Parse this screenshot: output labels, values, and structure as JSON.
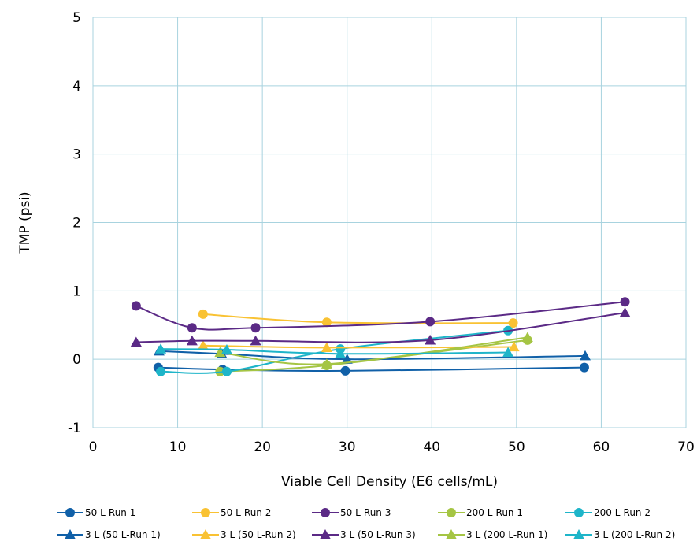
{
  "chart_data": {
    "type": "scatter",
    "title": "",
    "xlabel": "Viable Cell Density (E6 cells/mL)",
    "ylabel": "TMP (psi)",
    "xlim": [
      0,
      70
    ],
    "ylim": [
      -1,
      5
    ],
    "xticks": [
      0,
      10,
      20,
      30,
      40,
      50,
      60,
      70
    ],
    "yticks": [
      -1,
      0,
      1,
      2,
      3,
      4,
      5
    ],
    "grid": true,
    "legend_position": "bottom",
    "series": [
      {
        "name": "50 L-Run 1",
        "marker": "circle",
        "color": "#1060a8",
        "points": [
          [
            7.7,
            -0.12
          ],
          [
            15.3,
            -0.15
          ],
          [
            29.8,
            -0.17
          ],
          [
            58.0,
            -0.12
          ]
        ]
      },
      {
        "name": "50 L-Run 2",
        "marker": "circle",
        "color": "#f9c233",
        "points": [
          [
            13.0,
            0.66
          ],
          [
            27.6,
            0.54
          ],
          [
            49.6,
            0.53
          ]
        ]
      },
      {
        "name": "50 L-Run 3",
        "marker": "circle",
        "color": "#5b2a86",
        "points": [
          [
            5.1,
            0.78
          ],
          [
            11.7,
            0.46
          ],
          [
            19.2,
            0.46
          ],
          [
            39.8,
            0.55
          ],
          [
            62.8,
            0.84
          ]
        ]
      },
      {
        "name": "200 L-Run 1",
        "marker": "circle",
        "color": "#a5c544",
        "points": [
          [
            15.0,
            -0.18
          ],
          [
            27.6,
            -0.09
          ],
          [
            51.3,
            0.28
          ]
        ]
      },
      {
        "name": "200 L-Run 2",
        "marker": "circle",
        "color": "#1eb5c9",
        "points": [
          [
            8.0,
            -0.18
          ],
          [
            15.8,
            -0.18
          ],
          [
            29.2,
            0.15
          ],
          [
            49.0,
            0.42
          ]
        ]
      },
      {
        "name": "3 L (50 L-Run 1)",
        "marker": "triangle",
        "color": "#1060a8",
        "points": [
          [
            7.8,
            0.12
          ],
          [
            15.2,
            0.08
          ],
          [
            30.0,
            0.0
          ],
          [
            58.1,
            0.05
          ]
        ]
      },
      {
        "name": "3 L (50 L-Run 2)",
        "marker": "triangle",
        "color": "#f9c233",
        "points": [
          [
            13.0,
            0.2
          ],
          [
            27.6,
            0.17
          ],
          [
            49.7,
            0.18
          ]
        ]
      },
      {
        "name": "3 L (50 L-Run 3)",
        "marker": "triangle",
        "color": "#5b2a86",
        "points": [
          [
            5.1,
            0.25
          ],
          [
            11.7,
            0.27
          ],
          [
            19.2,
            0.27
          ],
          [
            39.8,
            0.28
          ],
          [
            62.8,
            0.68
          ]
        ]
      },
      {
        "name": "3 L (200 L-Run 1)",
        "marker": "triangle",
        "color": "#a5c544",
        "points": [
          [
            15.0,
            0.1
          ],
          [
            27.6,
            -0.07
          ],
          [
            51.3,
            0.32
          ]
        ]
      },
      {
        "name": "3 L (200 L-Run 2)",
        "marker": "triangle",
        "color": "#1eb5c9",
        "points": [
          [
            8.0,
            0.15
          ],
          [
            15.8,
            0.14
          ],
          [
            29.2,
            0.08
          ],
          [
            49.0,
            0.1
          ]
        ]
      }
    ]
  }
}
